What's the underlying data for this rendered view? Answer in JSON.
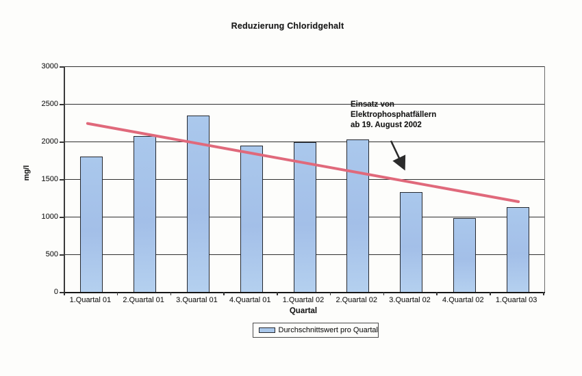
{
  "chart_data": {
    "type": "bar",
    "title": "Reduzierung Chloridgehalt",
    "categories": [
      "1.Quartal 01",
      "2.Quartal 01",
      "3.Quartal 01",
      "4.Quartal 01",
      "1.Quartal 02",
      "2.Quartal 02",
      "3.Quartal 02",
      "4.Quartal 02",
      "1.Quartal 03"
    ],
    "series": [
      {
        "name": "Durchschnittswert pro Quartal",
        "values": [
          1800,
          2070,
          2350,
          1950,
          1990,
          2030,
          1330,
          980,
          1130
        ]
      }
    ],
    "xlabel": "Quartal",
    "ylabel": "mg/l",
    "ylim": [
      0,
      3000
    ],
    "ytick_step": 500,
    "ytick_labels": [
      "0",
      "500",
      "1000",
      "1500",
      "2000",
      "2500",
      "3000"
    ],
    "grid": true,
    "legend_position": "bottom-center",
    "bar_color": "#a9c7ea",
    "bar_border_color": "#23272e",
    "gridline_color": "#2d2d2d",
    "trendline": {
      "start_value": 2240,
      "end_value": 1200,
      "color": "#e0697b"
    },
    "annotation": {
      "lines": [
        "Einsatz von",
        "Elektrophosphatfällern",
        "ab 19. August 2002"
      ],
      "arrow_color": "#2b2b2b"
    }
  }
}
